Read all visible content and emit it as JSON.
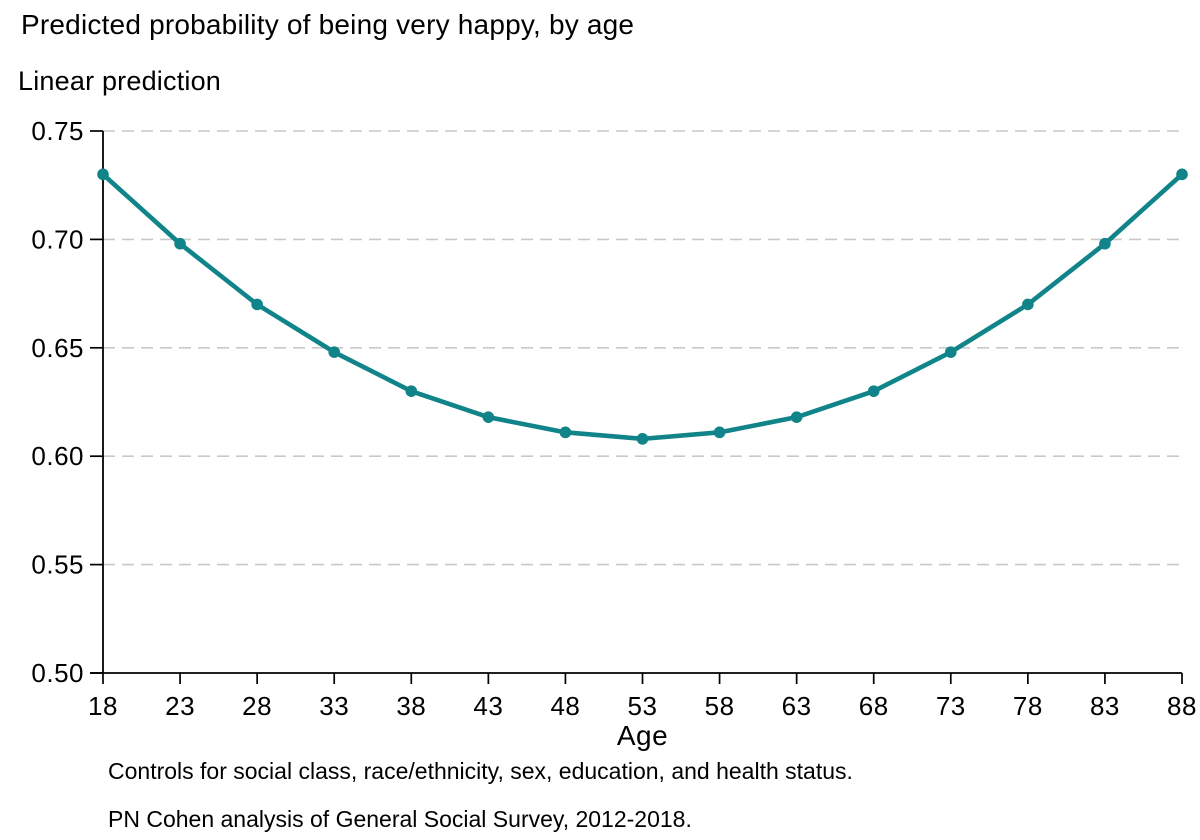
{
  "chart_data": {
    "type": "line",
    "title": "Predicted probability of being very happy, by age",
    "ylabel": "Linear prediction",
    "xlabel": "Age",
    "x": [
      18,
      23,
      28,
      33,
      38,
      43,
      48,
      53,
      58,
      63,
      68,
      73,
      78,
      83,
      88
    ],
    "values": [
      0.73,
      0.698,
      0.67,
      0.648,
      0.63,
      0.618,
      0.611,
      0.608,
      0.611,
      0.618,
      0.63,
      0.648,
      0.67,
      0.698,
      0.73
    ],
    "series_name": "Linear prediction",
    "xlim": [
      18,
      88
    ],
    "ylim": [
      0.5,
      0.75
    ],
    "yticks": [
      0.5,
      0.55,
      0.6,
      0.65,
      0.7,
      0.75
    ],
    "ytick_labels": [
      "0.50",
      "0.55",
      "0.60",
      "0.65",
      "0.70",
      "0.75"
    ],
    "xtick_labels": [
      "18",
      "23",
      "28",
      "33",
      "38",
      "43",
      "48",
      "53",
      "58",
      "63",
      "68",
      "73",
      "78",
      "83",
      "88"
    ],
    "grid": "horizontal-dashed",
    "legend": "none",
    "marker": "circle",
    "line_color": "#108489",
    "grid_color": "#c9c9c9",
    "axis_color": "#000000"
  },
  "notes": {
    "line1": "Controls for social class, race/ethnicity, sex, education, and health status.",
    "line2": "PN Cohen analysis of General Social Survey, 2012-2018."
  }
}
